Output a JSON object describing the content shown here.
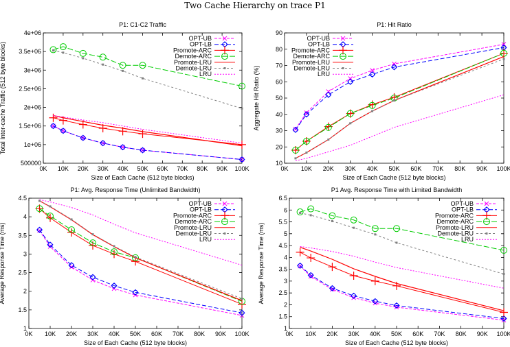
{
  "title": "Two Cache Hierarchy on trace P1",
  "chart_data": [
    {
      "type": "line",
      "title": "P1: C1-C2 Traffic",
      "xlabel": "Size of Each Cache (512 byte blocks)",
      "ylabel": "Total Inter-cache Traffic (512 byte blocks)",
      "xlim": [
        0,
        100000
      ],
      "ylim": [
        500000,
        4000000
      ],
      "xticks": [
        0,
        10000,
        20000,
        30000,
        40000,
        50000,
        60000,
        70000,
        80000,
        90000,
        100000
      ],
      "xtick_labels": [
        "0K",
        "10K",
        "20K",
        "30K",
        "40K",
        "50K",
        "60K",
        "70K",
        "80K",
        "90K",
        "100K"
      ],
      "yticks": [
        500000,
        1000000,
        1500000,
        2000000,
        2500000,
        3000000,
        3500000,
        4000000
      ],
      "ytick_labels": [
        "500000",
        "1e+06",
        "1.5e+06",
        "2e+06",
        "2.5e+06",
        "3e+06",
        "3.5e+06",
        "4e+06"
      ],
      "legend": "top-right",
      "grid": false,
      "x": [
        5000,
        10000,
        20000,
        30000,
        40000,
        50000,
        100000
      ],
      "series": [
        {
          "name": "OPT-UB",
          "values": [
            1500000,
            1370000,
            1180000,
            1040000,
            930000,
            850000,
            600000
          ]
        },
        {
          "name": "OPT-LB",
          "values": [
            1500000,
            1370000,
            1180000,
            1040000,
            930000,
            850000,
            600000
          ]
        },
        {
          "name": "Promote-ARC",
          "values": [
            1720000,
            1650000,
            1540000,
            1440000,
            1360000,
            1290000,
            1000000
          ]
        },
        {
          "name": "Demote-ARC",
          "values": [
            3550000,
            3630000,
            3450000,
            3350000,
            3130000,
            3130000,
            2570000
          ]
        },
        {
          "name": "Promote-LRU",
          "values": [
            1780000,
            1720000,
            1620000,
            1520000,
            1440000,
            1350000,
            970000
          ]
        },
        {
          "name": "Demote-LRU",
          "values": [
            3530000,
            3470000,
            3320000,
            3150000,
            2980000,
            2780000,
            1970000
          ]
        },
        {
          "name": "LRU",
          "values": [
            1780000,
            1740000,
            1660000,
            1590000,
            1500000,
            1410000,
            1040000
          ]
        }
      ]
    },
    {
      "type": "line",
      "title": "P1: Hit Ratio",
      "xlabel": "Size of Each Cache (512 byte blocks)",
      "ylabel": "Aggregate Hit Ratio (%)",
      "xlim": [
        0,
        100000
      ],
      "ylim": [
        10,
        90
      ],
      "xticks": [
        0,
        10000,
        20000,
        30000,
        40000,
        50000,
        60000,
        70000,
        80000,
        90000,
        100000
      ],
      "xtick_labels": [
        "0K",
        "10K",
        "20K",
        "30K",
        "40K",
        "50K",
        "60K",
        "70K",
        "80K",
        "90K",
        "100K"
      ],
      "yticks": [
        10,
        20,
        30,
        40,
        50,
        60,
        70,
        80,
        90
      ],
      "ytick_labels": [
        "10",
        "20",
        "30",
        "40",
        "50",
        "60",
        "70",
        "80",
        "90"
      ],
      "legend": "top-left",
      "grid": false,
      "x": [
        5000,
        10000,
        20000,
        30000,
        40000,
        50000,
        100000
      ],
      "series": [
        {
          "name": "OPT-UB",
          "values": [
            31,
            41,
            54,
            62,
            67,
            71,
            83
          ]
        },
        {
          "name": "OPT-LB",
          "values": [
            30.5,
            40,
            52,
            60,
            64.5,
            69,
            81
          ]
        },
        {
          "name": "Promote-ARC",
          "values": [
            18,
            23.5,
            32.5,
            40.5,
            46,
            50.5,
            77.5
          ]
        },
        {
          "name": "Demote-ARC",
          "values": [
            18,
            23.5,
            32,
            40.5,
            45.5,
            50,
            77.5
          ]
        },
        {
          "name": "Promote-LRU",
          "values": [
            13,
            16.5,
            24.5,
            34.5,
            42,
            48.5,
            75.5
          ]
        },
        {
          "name": "Demote-LRU",
          "values": [
            13,
            16.5,
            24.5,
            34.5,
            42,
            48.5,
            74
          ]
        },
        {
          "name": "LRU",
          "values": [
            11.5,
            13,
            17,
            21,
            26.5,
            32,
            52
          ]
        }
      ]
    },
    {
      "type": "line",
      "title": "P1: Avg. Response Time (Unlimited Bandwidth)",
      "xlabel": "Size of Each Cache (512 byte blocks)",
      "ylabel": "Average Response Time (ms)",
      "xlim": [
        0,
        100000
      ],
      "ylim": [
        1,
        4.5
      ],
      "xticks": [
        0,
        10000,
        20000,
        30000,
        40000,
        50000,
        60000,
        70000,
        80000,
        90000,
        100000
      ],
      "xtick_labels": [
        "0K",
        "10K",
        "20K",
        "30K",
        "40K",
        "50K",
        "60K",
        "70K",
        "80K",
        "90K",
        "100K"
      ],
      "yticks": [
        1,
        1.5,
        2,
        2.5,
        3,
        3.5,
        4,
        4.5
      ],
      "ytick_labels": [
        "1",
        "1.5",
        "2",
        "2.5",
        "3",
        "3.5",
        "4",
        "4.5"
      ],
      "legend": "top-right",
      "grid": false,
      "x": [
        5000,
        10000,
        20000,
        30000,
        40000,
        50000,
        100000
      ],
      "series": [
        {
          "name": "OPT-UB",
          "values": [
            3.63,
            3.2,
            2.65,
            2.3,
            2.07,
            1.9,
            1.35
          ]
        },
        {
          "name": "OPT-LB",
          "values": [
            3.65,
            3.25,
            2.7,
            2.38,
            2.15,
            1.97,
            1.42
          ]
        },
        {
          "name": "Promote-ARC",
          "values": [
            4.22,
            3.97,
            3.58,
            3.23,
            3.0,
            2.8,
            1.65
          ]
        },
        {
          "name": "Demote-ARC",
          "values": [
            4.22,
            4.02,
            3.65,
            3.3,
            3.06,
            2.9,
            1.73
          ]
        },
        {
          "name": "Promote-LRU",
          "values": [
            4.43,
            4.27,
            3.92,
            3.52,
            3.2,
            2.9,
            1.75
          ]
        },
        {
          "name": "Demote-LRU",
          "values": [
            4.43,
            4.28,
            3.93,
            3.53,
            3.21,
            2.92,
            1.8
          ]
        },
        {
          "name": "LRU",
          "values": [
            4.46,
            4.4,
            4.25,
            4.05,
            3.8,
            3.57,
            2.7
          ]
        }
      ]
    },
    {
      "type": "line",
      "title": "P1 Avg. Response Time with Limited Bandwidth",
      "xlabel": "Size of Each Cache (512 byte blocks)",
      "ylabel": "Average Response Time (ms)",
      "xlim": [
        0,
        100000
      ],
      "ylim": [
        1,
        6.5
      ],
      "xticks": [
        0,
        10000,
        20000,
        30000,
        40000,
        50000,
        60000,
        70000,
        80000,
        90000,
        100000
      ],
      "xtick_labels": [
        "0K",
        "10K",
        "20K",
        "30K",
        "40K",
        "50K",
        "60K",
        "70K",
        "80K",
        "90K",
        "100K"
      ],
      "yticks": [
        1,
        1.5,
        2,
        2.5,
        3,
        3.5,
        4,
        4.5,
        5,
        5.5,
        6,
        6.5
      ],
      "ytick_labels": [
        "1",
        "1.5",
        "2",
        "2.5",
        "3",
        "3.5",
        "4",
        "4.5",
        "5",
        "5.5",
        "6",
        "6.5"
      ],
      "legend": "top-right",
      "grid": false,
      "x": [
        5000,
        10000,
        20000,
        30000,
        40000,
        50000,
        100000
      ],
      "series": [
        {
          "name": "OPT-UB",
          "values": [
            3.63,
            3.2,
            2.65,
            2.3,
            2.07,
            1.9,
            1.35
          ]
        },
        {
          "name": "OPT-LB",
          "values": [
            3.65,
            3.25,
            2.7,
            2.38,
            2.15,
            1.97,
            1.42
          ]
        },
        {
          "name": "Promote-ARC",
          "values": [
            4.22,
            3.98,
            3.6,
            3.23,
            3.0,
            2.8,
            1.68
          ]
        },
        {
          "name": "Demote-ARC",
          "values": [
            5.92,
            6.05,
            5.76,
            5.58,
            5.22,
            5.22,
            4.3
          ]
        },
        {
          "name": "Promote-LRU",
          "values": [
            4.43,
            4.27,
            3.92,
            3.52,
            3.2,
            2.9,
            1.75
          ]
        },
        {
          "name": "Demote-LRU",
          "values": [
            5.88,
            5.78,
            5.53,
            5.25,
            4.97,
            4.62,
            3.3
          ]
        },
        {
          "name": "LRU",
          "values": [
            4.46,
            4.4,
            4.25,
            4.05,
            3.8,
            3.57,
            2.7
          ]
        }
      ]
    }
  ],
  "styles": {
    "OPT-UB": {
      "color": "#ff00ff",
      "dash": "4,2",
      "marker": "x"
    },
    "OPT-LB": {
      "color": "#0000ff",
      "dash": "6,3",
      "marker": "diamond-circle"
    },
    "Promote-ARC": {
      "color": "#ff0000",
      "dash": "",
      "marker": "plus"
    },
    "Demote-ARC": {
      "color": "#00cc00",
      "dash": "8,3",
      "marker": "circle"
    },
    "Promote-LRU": {
      "color": "#ff0000",
      "dash": "",
      "marker": "none"
    },
    "Demote-LRU": {
      "color": "#808080",
      "dash": "3,3",
      "marker": "square"
    },
    "LRU": {
      "color": "#ff00ff",
      "dash": "2,2",
      "marker": "none"
    }
  }
}
